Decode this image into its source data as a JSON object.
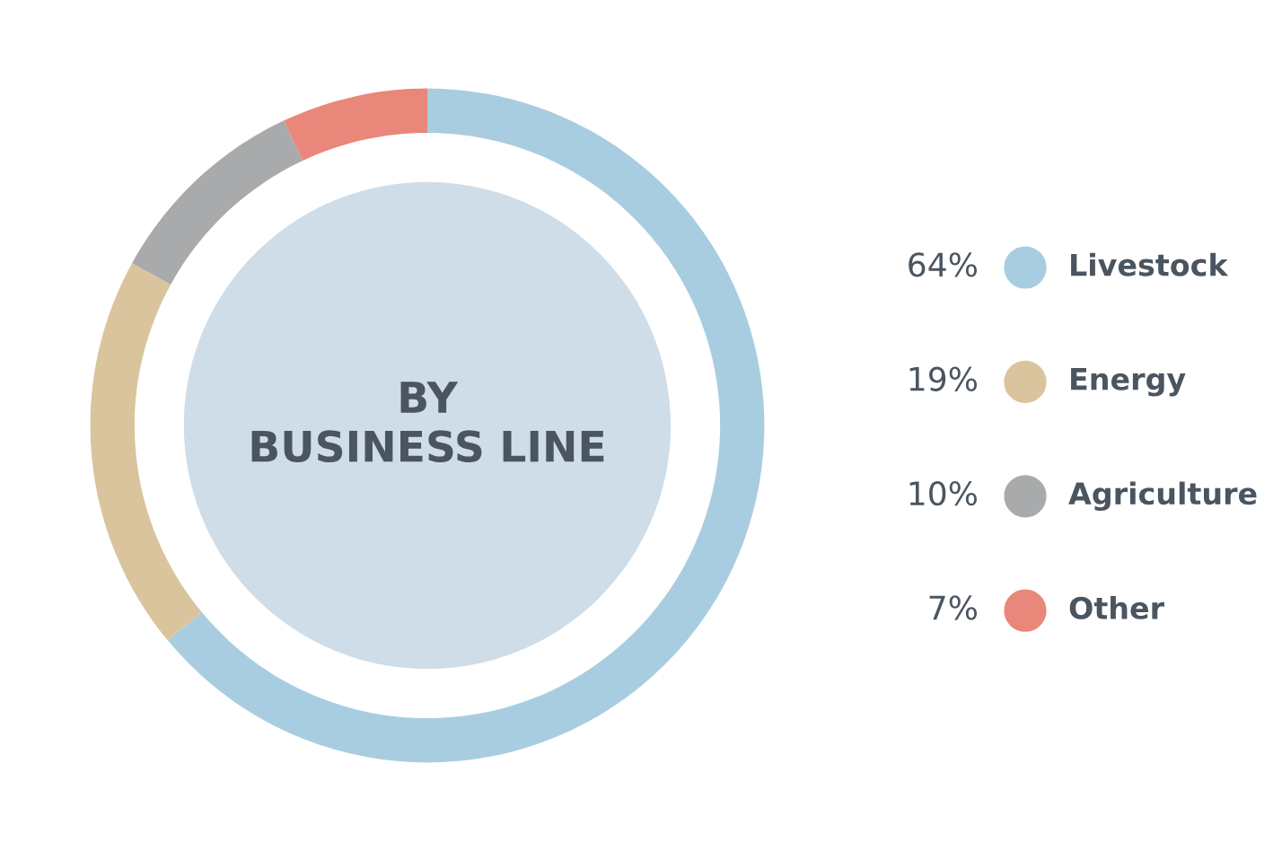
{
  "chart_data": {
    "type": "donut",
    "title": "BY\nBUSINESS LINE",
    "categories": [
      "Livestock",
      "Energy",
      "Agriculture",
      "Other"
    ],
    "values": [
      64,
      19,
      10,
      7
    ],
    "value_labels": [
      "64%",
      "19%",
      "10%",
      "7%"
    ],
    "colors": [
      "#a9cde0",
      "#d9c49d",
      "#a9aaab",
      "#e8877a"
    ],
    "legend": "right"
  }
}
